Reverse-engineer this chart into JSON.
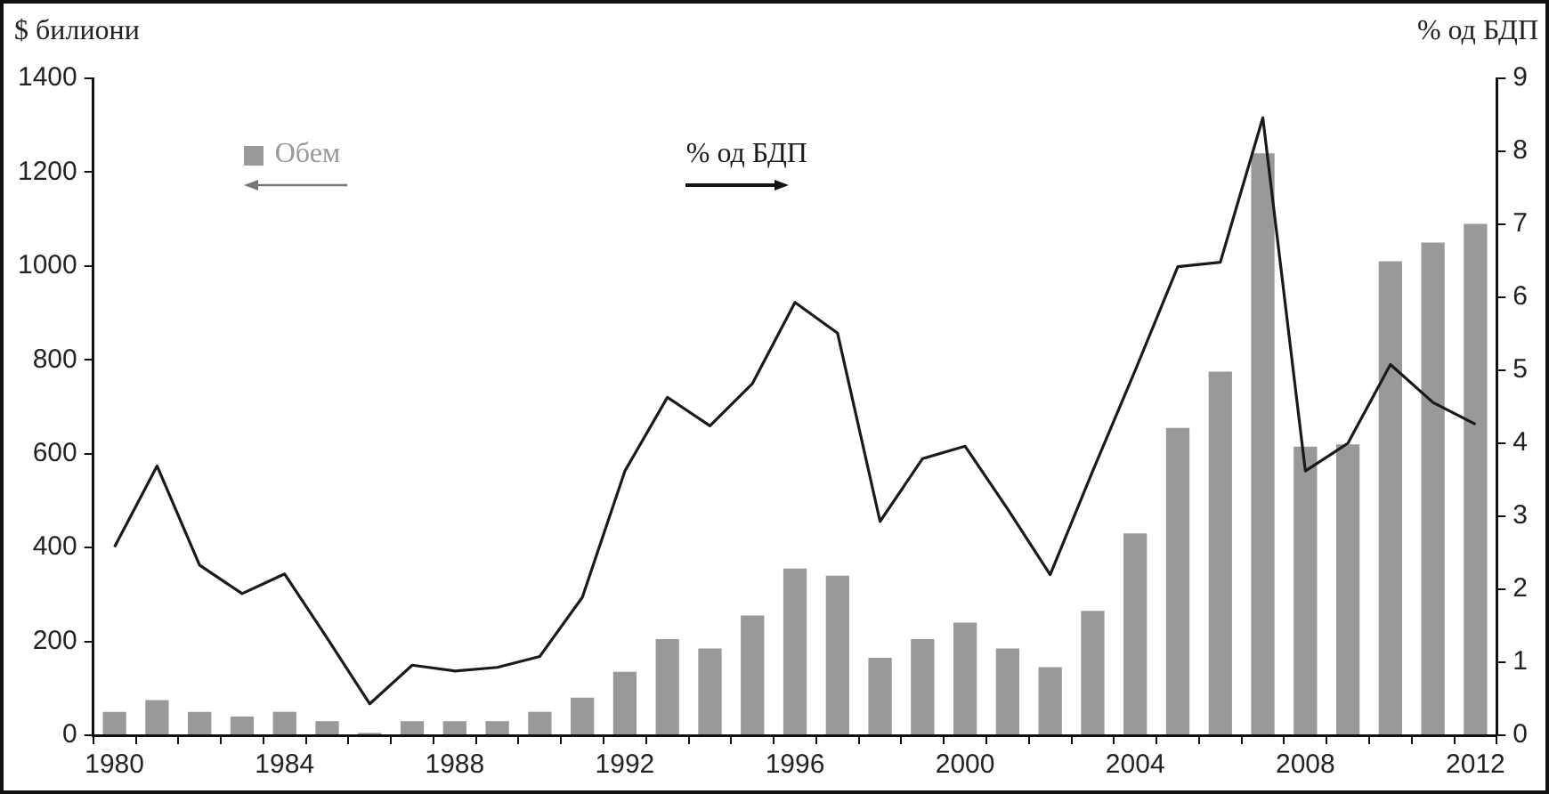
{
  "chart_data": {
    "type": "bar",
    "ylabel": "$ билиони",
    "y2label": "% од БДП",
    "categories": [
      "1980",
      null,
      null,
      null,
      "1984",
      null,
      null,
      null,
      "1988",
      null,
      null,
      null,
      "1992",
      null,
      null,
      null,
      "1996",
      null,
      null,
      null,
      "2000",
      null,
      null,
      null,
      "2004",
      null,
      null,
      null,
      "2008",
      null,
      null,
      null,
      "2012"
    ],
    "series": [
      {
        "name": "Обем",
        "color": "#999999",
        "values": [
          50,
          75,
          50,
          40,
          50,
          30,
          5,
          30,
          30,
          30,
          50,
          80,
          135,
          205,
          185,
          255,
          355,
          340,
          165,
          205,
          240,
          185,
          145,
          265,
          430,
          655,
          775,
          1240,
          615,
          620,
          1010,
          1050,
          1090
        ]
      },
      {
        "name": "% од БДП",
        "type": "line",
        "axis": "y2",
        "color": "#1a1a1a",
        "values": [
          2.58,
          3.69,
          2.33,
          1.94,
          2.21,
          1.33,
          0.43,
          0.96,
          0.88,
          0.93,
          1.08,
          1.89,
          3.62,
          4.63,
          4.24,
          4.82,
          5.93,
          5.51,
          2.93,
          3.79,
          3.96,
          3.1,
          2.2,
          3.62,
          5.0,
          6.42,
          6.48,
          8.46,
          3.62,
          4.0,
          5.08,
          4.56,
          4.26
        ]
      }
    ],
    "ylim": [
      0,
      1400
    ],
    "yticks": [
      0,
      200,
      400,
      600,
      800,
      1000,
      1200,
      1400
    ],
    "y2lim": [
      0,
      9
    ],
    "y2ticks": [
      0,
      1,
      2,
      3,
      4,
      5,
      6,
      7,
      8,
      9
    ],
    "legend": "top left",
    "grid": false,
    "marker": "none"
  }
}
